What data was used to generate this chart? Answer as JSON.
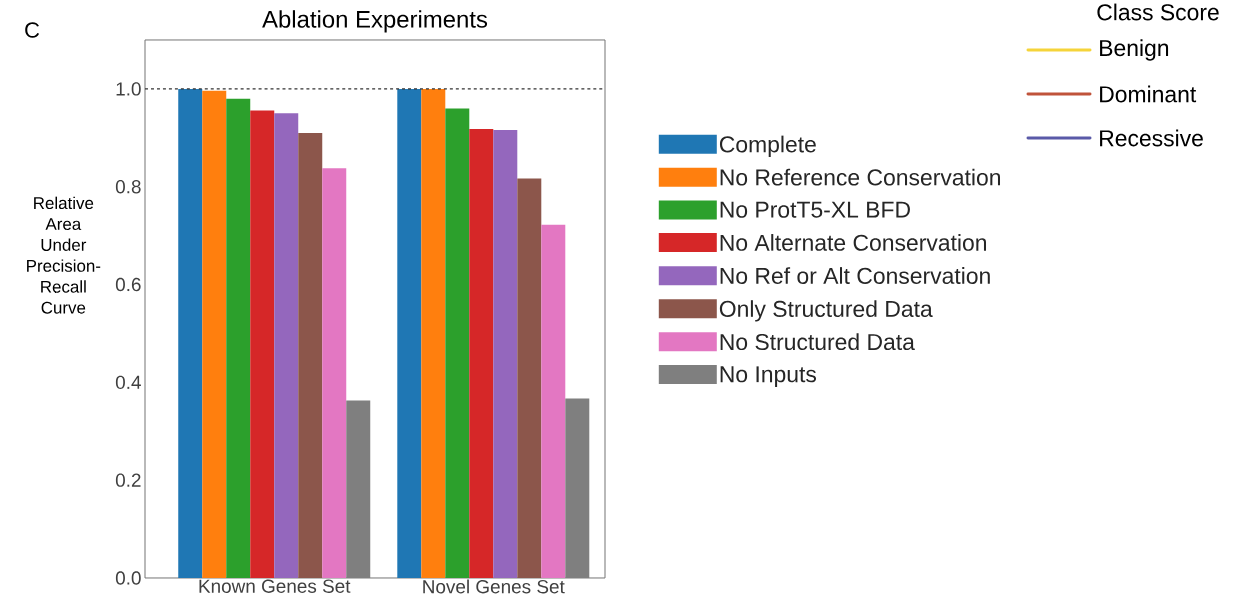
{
  "chart_data": {
    "type": "bar",
    "title": "Ablation Experiments",
    "ylabel": "Relative Area Under Precision-Recall Curve",
    "categories": [
      "Known Genes Set",
      "Novel Genes Set"
    ],
    "series": [
      {
        "name": "Complete",
        "color": "#1f77b4",
        "values": [
          1.0,
          1.0
        ]
      },
      {
        "name": "No Reference Conservation",
        "color": "#ff7f0e",
        "values": [
          0.996,
          1.0
        ]
      },
      {
        "name": "No ProtT5-XL BFD",
        "color": "#2ca02c",
        "values": [
          0.98,
          0.96
        ]
      },
      {
        "name": "No Alternate Conservation",
        "color": "#d62728",
        "values": [
          0.956,
          0.918
        ]
      },
      {
        "name": "No Ref or Alt Conservation",
        "color": "#9467bd",
        "values": [
          0.95,
          0.916
        ]
      },
      {
        "name": "Only Structured Data",
        "color": "#8c564b",
        "values": [
          0.91,
          0.817
        ]
      },
      {
        "name": "No Structured Data",
        "color": "#e377c2",
        "values": [
          0.838,
          0.722
        ]
      },
      {
        "name": "No Inputs",
        "color": "#7f7f7f",
        "values": [
          0.363,
          0.367
        ]
      },
      {
        "name": "Benign",
        "type": "line",
        "color": "#f5d43a",
        "values": [
          null,
          null
        ]
      },
      {
        "name": "Dominant",
        "type": "line",
        "color": "#c0533a",
        "values": [
          null,
          null
        ]
      },
      {
        "name": "Recessive",
        "type": "line",
        "color": "#5a5aa8",
        "values": [
          null,
          null
        ]
      }
    ],
    "legend_title": "Class Score",
    "ylim": [
      0,
      1.1
    ],
    "yticks": [
      {
        "value": 0,
        "label": "0.0"
      },
      {
        "value": 0.2,
        "label": "0.2"
      },
      {
        "value": 0.4,
        "label": "0.4"
      },
      {
        "value": 0.6,
        "label": "0.6"
      },
      {
        "value": 0.8,
        "label": "0.8"
      },
      {
        "value": 1.0,
        "label": "1.0"
      }
    ],
    "ref_lines": [
      {
        "axis": "y",
        "value": 1.0,
        "line_style": "dashed",
        "color": "#333333"
      }
    ],
    "annotations": [
      "C"
    ],
    "legend": "right",
    "grid": false
  }
}
